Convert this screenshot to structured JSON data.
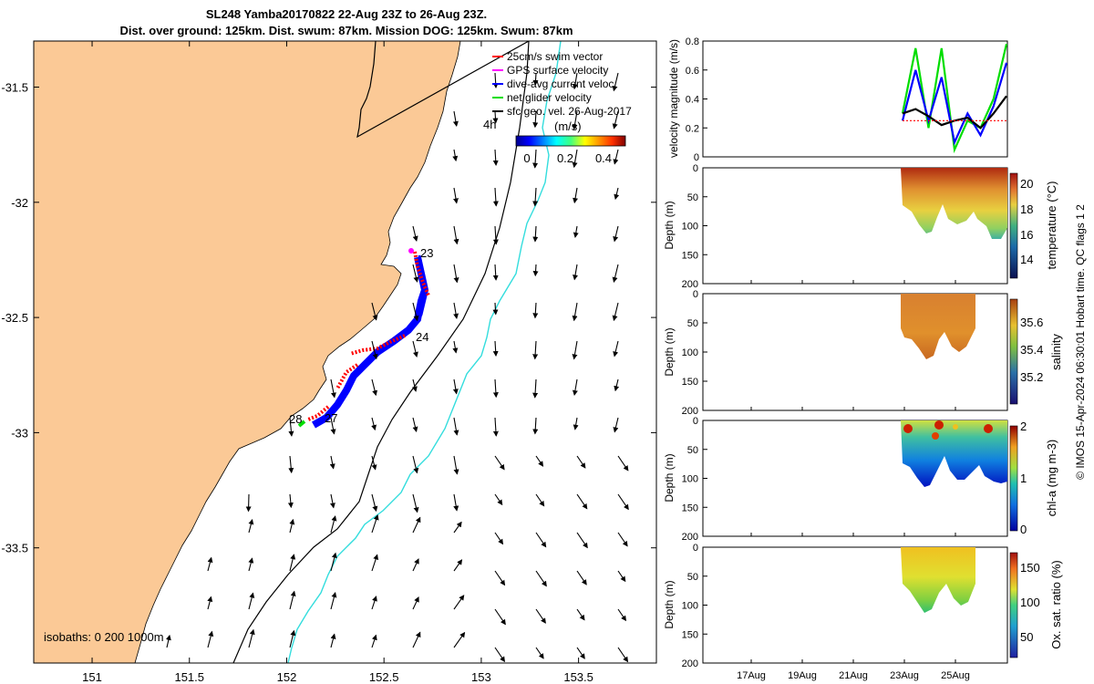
{
  "title": {
    "line1": "SL248 Yamba20170822 22-Aug 23Z to 26-Aug 23Z.",
    "line2": "Dist. over ground: 125km. Dist. swum: 87km. Mission DOG: 125km. Swum: 87km"
  },
  "colors": {
    "land": "#fbc996",
    "swim_vector": "#ff0000",
    "gps_surface_velocity": "#ff00ff",
    "dive_avg_current": "#0000ff",
    "net_glider_velocity": "#00dd00",
    "sfc_geo_vel": "#000000",
    "isobath_200": "#000000",
    "isobath_1000": "#33dddd"
  },
  "map": {
    "xlim": [
      150.7,
      153.9
    ],
    "ylim": [
      -34.0,
      -31.3
    ],
    "x_ticks": [
      "151",
      "151.5",
      "152",
      "152.5",
      "153",
      "153.5"
    ],
    "y_ticks": [
      "-31.5",
      "-32",
      "-32.5",
      "-33",
      "-33.5"
    ],
    "isobath_label": "isobaths: 0   200  1000m",
    "time_label": "4h",
    "day_labels": [
      {
        "text": "23",
        "lon": 152.65,
        "lat": -32.18
      },
      {
        "text": "24",
        "lon": 152.6,
        "lat": -32.54
      },
      {
        "text": "27",
        "lon": 152.18,
        "lat": -32.88
      },
      {
        "text": "28",
        "lon": 152.05,
        "lat": -32.89
      }
    ],
    "legend": [
      {
        "label": "25cm/s swim vector",
        "color": "#ff0000"
      },
      {
        "label": "GPS surface velocity",
        "color": "#ff00ff"
      },
      {
        "label": "dive-avg current veloc.",
        "color": "#0000ff"
      },
      {
        "label": "net glider velocity",
        "color": "#00dd00"
      },
      {
        "label": "sfc geo. vel. 26-Aug-2017",
        "color": "#000000"
      }
    ],
    "colorbar": {
      "label": "(m/s)",
      "ticks": [
        "0",
        "0.2",
        "0.4"
      ],
      "range": [
        0,
        0.5
      ]
    }
  },
  "chart_data": [
    {
      "type": "line",
      "ylabel": "velocity magnitude (m/s)",
      "ylim": [
        0,
        0.8
      ],
      "y_ticks": [
        "0",
        "0.2",
        "0.4",
        "0.6",
        "0.8"
      ],
      "x": [
        "23Aug 00",
        "23Aug 12",
        "24Aug 00",
        "24Aug 12",
        "25Aug 00",
        "25Aug 12",
        "26Aug 00",
        "26Aug 12",
        "27Aug 00"
      ],
      "series": [
        {
          "color": "#00dd00",
          "values": [
            0.3,
            0.75,
            0.2,
            0.75,
            0.05,
            0.25,
            0.2,
            0.4,
            0.78
          ]
        },
        {
          "color": "#0000ff",
          "values": [
            0.25,
            0.6,
            0.25,
            0.55,
            0.1,
            0.3,
            0.15,
            0.35,
            0.65
          ]
        },
        {
          "color": "#000000",
          "values": [
            0.3,
            0.33,
            0.28,
            0.22,
            0.25,
            0.27,
            0.2,
            0.3,
            0.42
          ]
        },
        {
          "color": "#ff0000",
          "values": [
            0.25,
            0.25,
            0.25,
            0.25,
            0.25,
            0.25,
            0.25,
            0.25,
            0.25
          ]
        }
      ]
    },
    {
      "type": "heatmap",
      "ylabel": "Depth (m)",
      "colorbar_label": "temperature (°C)",
      "ylim": [
        200,
        0
      ],
      "y_ticks": [
        "0",
        "50",
        "100",
        "150",
        "200"
      ],
      "cbar_ticks": [
        "14",
        "16",
        "18",
        "20"
      ]
    },
    {
      "type": "heatmap",
      "ylabel": "Depth (m)",
      "colorbar_label": "salinity",
      "ylim": [
        200,
        0
      ],
      "y_ticks": [
        "0",
        "50",
        "100",
        "150",
        "200"
      ],
      "cbar_ticks": [
        "35.2",
        "35.4",
        "35.6"
      ]
    },
    {
      "type": "heatmap",
      "ylabel": "Depth (m)",
      "colorbar_label": "chl-a (mg m-3)",
      "ylim": [
        200,
        0
      ],
      "y_ticks": [
        "0",
        "50",
        "100",
        "150",
        "200"
      ],
      "cbar_ticks": [
        "0",
        "1",
        "2"
      ]
    },
    {
      "type": "heatmap",
      "ylabel": "Depth (m)",
      "colorbar_label": "Ox. sat. ratio (%)",
      "ylim": [
        200,
        0
      ],
      "y_ticks": [
        "0",
        "50",
        "100",
        "150",
        "200"
      ],
      "cbar_ticks": [
        "50",
        "100",
        "150"
      ],
      "x_ticks": [
        "17Aug",
        "19Aug",
        "21Aug",
        "23Aug",
        "25Aug"
      ]
    }
  ],
  "side_note": "© IMOS 15-Apr-2024 06:30:01 Hobart time. QC flags 1  2"
}
